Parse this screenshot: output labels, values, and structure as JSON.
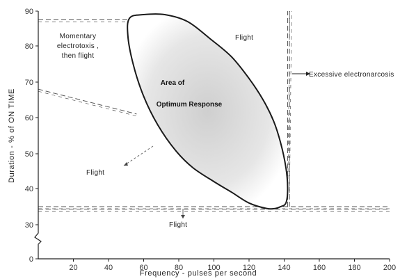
{
  "chart_data": {
    "type": "diagram",
    "xlabel": "Frequency - pulses per second",
    "ylabel": "Duration - % of ON TIME",
    "xlim": [
      0,
      200
    ],
    "ylim": [
      0,
      90
    ],
    "y_axis_break": true,
    "x_ticks": [
      20,
      40,
      60,
      80,
      100,
      120,
      140,
      160,
      180,
      200
    ],
    "y_ticks": [
      0,
      30,
      40,
      50,
      60,
      70,
      80,
      90
    ],
    "optimum_region": {
      "x": [
        52,
        60,
        72,
        85,
        98,
        110,
        120,
        128,
        134,
        138,
        141,
        142,
        141,
        138,
        135,
        130,
        120,
        110,
        100,
        88,
        78,
        68,
        60,
        54,
        51,
        52
      ],
      "y": [
        88,
        89,
        89,
        87,
        82,
        77,
        71,
        65,
        59,
        53,
        46,
        40,
        36,
        35,
        34.5,
        34.5,
        36,
        39,
        42,
        46,
        51,
        58,
        66,
        75,
        83,
        88
      ]
    },
    "boundaries": [
      {
        "x": [
          0,
          52
        ],
        "y": [
          87.5,
          87.5
        ]
      },
      {
        "x": [
          0,
          56
        ],
        "y": [
          68,
          61
        ]
      },
      {
        "x": [
          0,
          200
        ],
        "y": [
          35,
          35
        ]
      },
      {
        "x": [
          0,
          200
        ],
        "y": [
          34.3,
          34.3
        ]
      },
      {
        "x": [
          142,
          142
        ],
        "y": [
          35,
          90
        ]
      },
      {
        "x": [
          143,
          143
        ],
        "y": [
          35,
          90
        ]
      }
    ],
    "annotations": {
      "momentary": [
        "Momentary",
        "electrotoxis ,",
        "then flight"
      ],
      "area_line1": "Area of",
      "area_line2": "Optimum Response",
      "flight_upper_right": "Flight",
      "flight_left": "Flight",
      "flight_bottom": "Flight",
      "excessive": "Excessive electronarcosis"
    },
    "colors": {
      "curve": "#1a1a1a",
      "dashes": "#555555",
      "shading": "#d8d8d8"
    }
  }
}
